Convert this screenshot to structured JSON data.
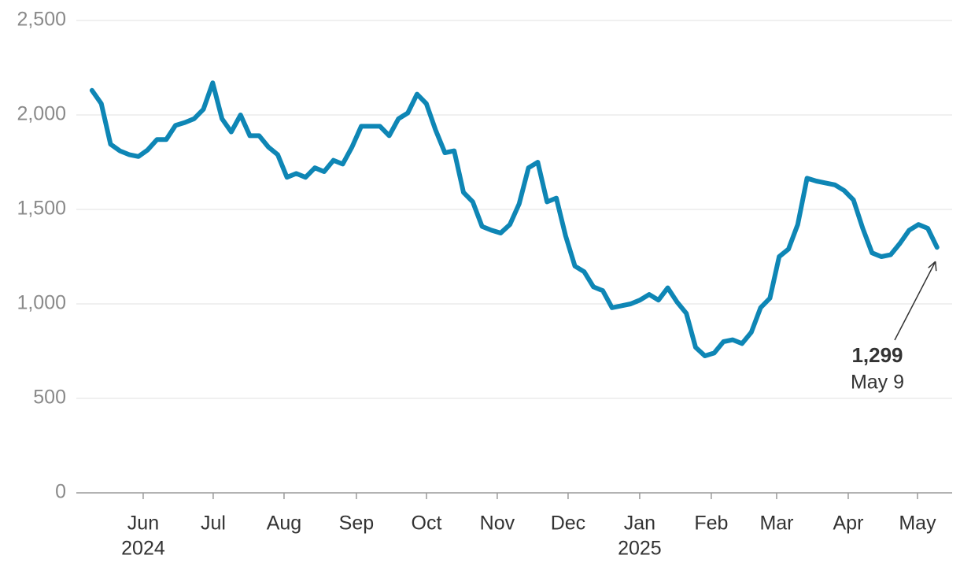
{
  "chart_data": {
    "type": "line",
    "values": [
      2130,
      2060,
      1845,
      1810,
      1790,
      1780,
      1815,
      1870,
      1870,
      1945,
      1960,
      1980,
      2030,
      2170,
      1980,
      1910,
      2000,
      1890,
      1890,
      1830,
      1790,
      1670,
      1690,
      1670,
      1720,
      1700,
      1760,
      1740,
      1830,
      1940,
      1940,
      1940,
      1890,
      1980,
      2010,
      2110,
      2060,
      1920,
      1800,
      1810,
      1590,
      1540,
      1410,
      1390,
      1375,
      1420,
      1530,
      1720,
      1750,
      1540,
      1560,
      1360,
      1200,
      1170,
      1090,
      1070,
      980,
      990,
      1000,
      1020,
      1050,
      1020,
      1085,
      1010,
      950,
      770,
      725,
      740,
      800,
      810,
      790,
      850,
      980,
      1030,
      1250,
      1290,
      1420,
      1665,
      1650,
      1640,
      1630,
      1600,
      1550,
      1400,
      1270,
      1250,
      1260,
      1320,
      1390,
      1420,
      1400,
      1299
    ],
    "color": "#0e86b5",
    "xlim": [
      -1.69,
      92.63
    ],
    "xticks": [
      {
        "value": 5.51,
        "label": "Jun"
      },
      {
        "value": 13.05,
        "label": "Jul"
      },
      {
        "value": 20.68,
        "label": "Aug"
      },
      {
        "value": 28.47,
        "label": "Sep"
      },
      {
        "value": 36.02,
        "label": "Oct"
      },
      {
        "value": 43.64,
        "label": "Nov"
      },
      {
        "value": 51.27,
        "label": "Dec"
      },
      {
        "value": 58.98,
        "label": "Jan"
      },
      {
        "value": 66.69,
        "label": "Feb"
      },
      {
        "value": 73.73,
        "label": "Mar"
      },
      {
        "value": 81.44,
        "label": "Apr"
      },
      {
        "value": 88.9,
        "label": "May"
      }
    ],
    "year_labels": [
      {
        "value": 5.51,
        "label": "2024"
      },
      {
        "value": 58.98,
        "label": "2025"
      }
    ],
    "ylim": [
      0,
      2500
    ],
    "yticks": [
      0,
      {
        "value": 500,
        "label": "500"
      },
      {
        "value": 1000,
        "label": "1,000"
      },
      {
        "value": 1500,
        "label": "1,500"
      },
      {
        "value": 2000,
        "label": "2,000"
      },
      {
        "value": 2500,
        "label": "2,500"
      }
    ],
    "grid": true,
    "annotation": {
      "value": 1299,
      "label": "1,299",
      "text": "May 9"
    }
  }
}
